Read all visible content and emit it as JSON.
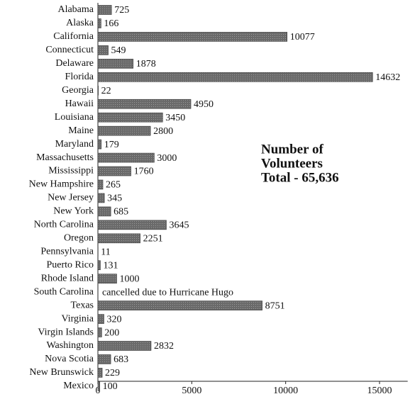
{
  "chart_data": {
    "type": "bar",
    "orientation": "horizontal",
    "categories": [
      "Alabama",
      "Alaska",
      "California",
      "Connecticut",
      "Delaware",
      "Florida",
      "Georgia",
      "Hawaii",
      "Louisiana",
      "Maine",
      "Maryland",
      "Massachusetts",
      "Mississippi",
      "New Hampshire",
      "New Jersey",
      "New York",
      "North Carolina",
      "Oregon",
      "Pennsylvania",
      "Puerto Rico",
      "Rhode Island",
      "South Carolina",
      "Texas",
      "Virginia",
      "Virgin Islands",
      "Washington",
      "Nova Scotia",
      "New Brunswick",
      "Mexico"
    ],
    "values": [
      725,
      166,
      10077,
      549,
      1878,
      14632,
      22,
      4950,
      3450,
      2800,
      179,
      3000,
      1760,
      265,
      345,
      685,
      3645,
      2251,
      11,
      131,
      1000,
      null,
      8751,
      320,
      200,
      2832,
      683,
      229,
      100
    ],
    "color": "#707070",
    "xlim": [
      0,
      16500
    ],
    "xticks": [
      0,
      5000,
      10000,
      15000
    ],
    "annotation": [
      "Number of",
      "Volunteers",
      "Total - 65,636"
    ],
    "notes": [
      {
        "category": "South Carolina",
        "text": "cancelled due to Hurricane Hugo"
      }
    ]
  }
}
